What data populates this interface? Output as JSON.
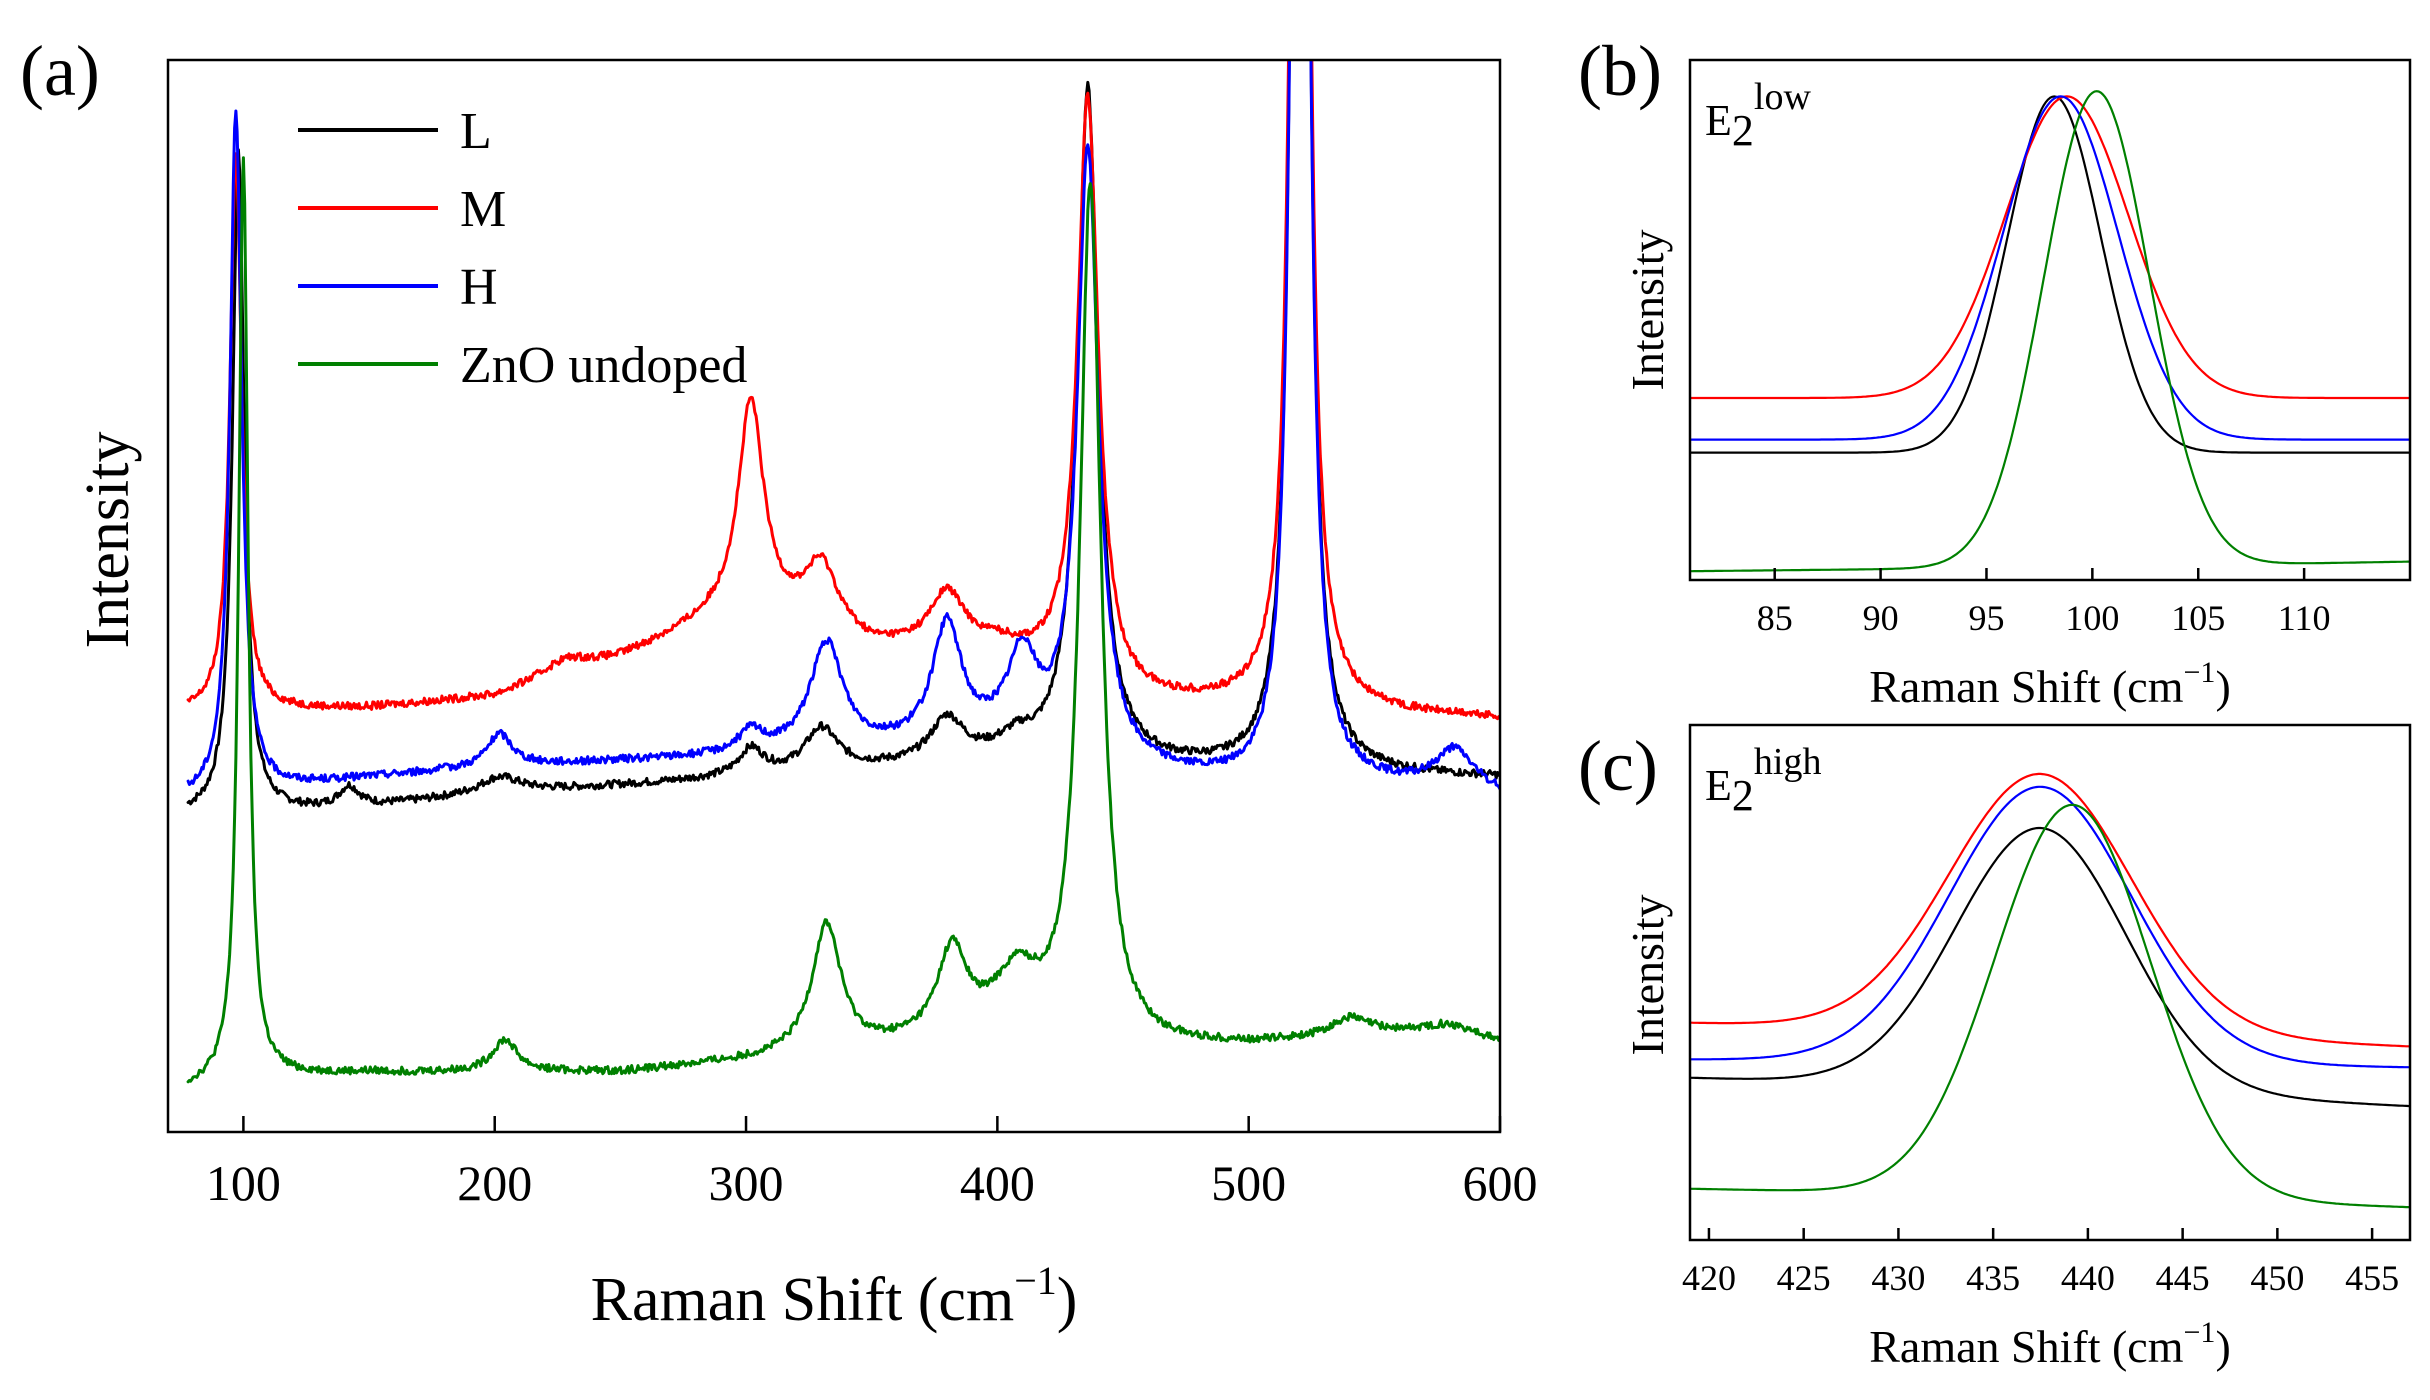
{
  "chart_data": [
    {
      "panel": "a",
      "type": "line",
      "panel_label": "(a)",
      "xlabel": "Raman Shift (cm",
      "xlabel_sup": "−1",
      "xlabel_close": ")",
      "ylabel": "Intensity",
      "xlim": [
        70,
        600
      ],
      "ylim": [
        0,
        100
      ],
      "xticks": [
        100,
        200,
        300,
        400,
        500,
        600
      ],
      "xtick_labels": [
        "100",
        "200",
        "300",
        "400",
        "500",
        "600"
      ],
      "legend_position": "top-left",
      "series": [
        {
          "name": "L",
          "color": "#000000",
          "baseline": [
            [
              78,
              29.5
            ],
            [
              140,
              30
            ],
            [
              200,
              31.5
            ],
            [
              300,
              33
            ],
            [
              400,
              34.5
            ],
            [
              500,
              33.5
            ],
            [
              600,
              33
            ]
          ],
          "peaks": [
            [
              98,
              62,
              2.8
            ],
            [
              142,
              2,
              5
            ],
            [
              202,
              1.5,
              10
            ],
            [
              302,
              2.5,
              6
            ],
            [
              330,
              4,
              8
            ],
            [
              380,
              4,
              8
            ],
            [
              408,
              1.5,
              8
            ],
            [
              436,
              63,
              5
            ],
            [
              519,
              90,
              3
            ],
            [
              522,
              90,
              3
            ]
          ]
        },
        {
          "name": "M",
          "color": "#ff0000",
          "baseline": [
            [
              78,
              39
            ],
            [
              150,
              39.5
            ],
            [
              200,
              40.5
            ],
            [
              250,
              44
            ],
            [
              300,
              49
            ],
            [
              350,
              45
            ],
            [
              400,
              45
            ],
            [
              450,
              40
            ],
            [
              500,
              39.5
            ],
            [
              550,
              39
            ],
            [
              600,
              38.5
            ]
          ],
          "peaks": [
            [
              97,
              52,
              2.8
            ],
            [
              228,
              1.5,
              12
            ],
            [
              302,
              19,
              6
            ],
            [
              330,
              6,
              8
            ],
            [
              380,
              5,
              8
            ],
            [
              436,
              55,
              5
            ],
            [
              519,
              90,
              3
            ],
            [
              522,
              90,
              3
            ]
          ]
        },
        {
          "name": "H",
          "color": "#0000ff",
          "baseline": [
            [
              78,
              31
            ],
            [
              150,
              33
            ],
            [
              200,
              34
            ],
            [
              300,
              35
            ],
            [
              400,
              36
            ],
            [
              450,
              33.5
            ],
            [
              500,
              32
            ],
            [
              550,
              32
            ],
            [
              600,
              31
            ]
          ],
          "peaks": [
            [
              97,
              64,
              2.8
            ],
            [
              202,
              3,
              6
            ],
            [
              302,
              2,
              6
            ],
            [
              332,
              10,
              8
            ],
            [
              380,
              11,
              7
            ],
            [
              410,
              8,
              7
            ],
            [
              436,
              57,
              5
            ],
            [
              519,
              90,
              3
            ],
            [
              522,
              90,
              3
            ],
            [
              582,
              4,
              10
            ]
          ]
        },
        {
          "name": "ZnO undoped",
          "color": "#008000",
          "baseline": [
            [
              78,
              4
            ],
            [
              100,
              5
            ],
            [
              150,
              5.5
            ],
            [
              250,
              5.5
            ],
            [
              300,
              6.5
            ],
            [
              350,
              7.5
            ],
            [
              400,
              9
            ],
            [
              450,
              7.5
            ],
            [
              500,
              8
            ],
            [
              550,
              9
            ],
            [
              600,
              8
            ]
          ],
          "peaks": [
            [
              100,
              86,
              2.2
            ],
            [
              204,
              3,
              6
            ],
            [
              332,
              12,
              7
            ],
            [
              382,
              8,
              7
            ],
            [
              408,
              5,
              10
            ],
            [
              437,
              80,
              5
            ],
            [
              540,
              1.5,
              8
            ],
            [
              580,
              1.5,
              15
            ]
          ]
        }
      ]
    },
    {
      "panel": "b",
      "type": "line",
      "panel_label": "(b)",
      "mode_base": "E",
      "mode_sub": "2",
      "mode_sup": "low",
      "xlabel": "Raman Shift (cm",
      "xlabel_sup": "−1",
      "xlabel_close": ")",
      "ylabel": "Intensity",
      "xlim": [
        81,
        115
      ],
      "ylim": [
        0,
        100
      ],
      "xticks": [
        85,
        90,
        95,
        100,
        105,
        110
      ],
      "xtick_labels": [
        "85",
        "90",
        "95",
        "100",
        "105",
        "110"
      ],
      "series": [
        {
          "name": "L",
          "color": "#000000",
          "base": 24.5,
          "center": 98.2,
          "amp": 68.5,
          "sigma": 2.2,
          "slope": 0
        },
        {
          "name": "M",
          "color": "#ff0000",
          "base": 35,
          "center": 98.8,
          "amp": 58,
          "sigma": 2.9,
          "slope": 0
        },
        {
          "name": "H",
          "color": "#0000ff",
          "base": 27,
          "center": 98.5,
          "amp": 66,
          "sigma": 2.7,
          "slope": 0
        },
        {
          "name": "ZnO undoped",
          "color": "#008000",
          "base": 2.5,
          "center": 100.2,
          "amp": 91.5,
          "sigma": 2.5,
          "slope": 0.07
        }
      ]
    },
    {
      "panel": "c",
      "type": "line",
      "panel_label": "(c)",
      "mode_base": "E",
      "mode_sub": "2",
      "mode_sup": "high",
      "xlabel": "Raman Shift (cm",
      "xlabel_sup": "−1",
      "xlabel_close": ")",
      "ylabel": "Intensity",
      "xlim": [
        419,
        457
      ],
      "ylim": [
        0,
        100
      ],
      "xticks": [
        420,
        425,
        430,
        435,
        440,
        445,
        450,
        455
      ],
      "xtick_labels": [
        "420",
        "425",
        "430",
        "435",
        "440",
        "445",
        "450",
        "455"
      ],
      "series": [
        {
          "name": "L",
          "color": "#000000",
          "base": 29.5,
          "center": 437.5,
          "amp": 50.5,
          "sigma": 4.5,
          "slope": -0.18
        },
        {
          "name": "M",
          "color": "#ff0000",
          "base": 40.5,
          "center": 437.5,
          "amp": 50,
          "sigma": 4.8,
          "slope": -0.15
        },
        {
          "name": "H",
          "color": "#0000ff",
          "base": 34.5,
          "center": 437.5,
          "amp": 53.5,
          "sigma": 4.8,
          "slope": -0.05
        },
        {
          "name": "ZnO undoped",
          "color": "#008000",
          "base": 8.5,
          "center": 439.2,
          "amp": 76,
          "sigma": 4.1,
          "slope": -0.12
        }
      ]
    }
  ]
}
